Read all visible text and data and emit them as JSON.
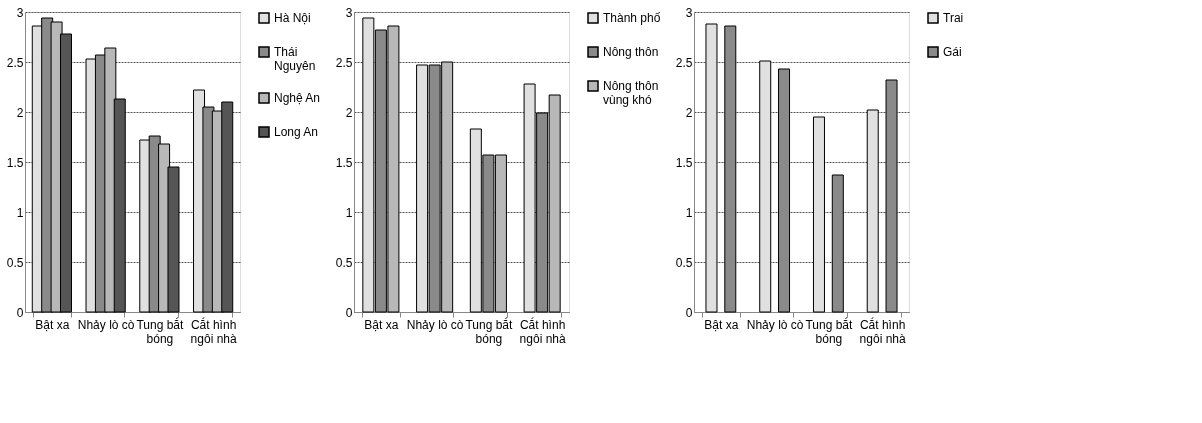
{
  "chart_data": [
    {
      "type": "bar",
      "categories": [
        "Bật xa",
        "Nhảy lò cò",
        "Tung bắt bóng",
        "Cắt hình ngôi nhà"
      ],
      "ylim": [
        0,
        3
      ],
      "yticks": [
        0,
        0.5,
        1,
        1.5,
        2,
        2.5,
        3
      ],
      "grid": "y",
      "legend": "right",
      "series": [
        {
          "name": "Hà Nội",
          "color": "#e0e0e0",
          "values": [
            2.86,
            2.53,
            1.72,
            2.22
          ]
        },
        {
          "name": "Thái Nguyên",
          "color": "#8a8a8a",
          "values": [
            2.94,
            2.57,
            1.76,
            2.05
          ]
        },
        {
          "name": "Nghệ An",
          "color": "#b8b8b8",
          "values": [
            2.9,
            2.64,
            1.68,
            2.01
          ]
        },
        {
          "name": "Long An",
          "color": "#555555",
          "values": [
            2.78,
            2.13,
            1.45,
            2.1
          ]
        }
      ]
    },
    {
      "type": "bar",
      "categories": [
        "Bật xa",
        "Nhảy lò cò",
        "Tung bắt bóng",
        "Cắt hình ngôi nhà"
      ],
      "ylim": [
        0,
        3
      ],
      "yticks": [
        0,
        0.5,
        1,
        1.5,
        2,
        2.5,
        3
      ],
      "grid": "y",
      "legend": "right",
      "series": [
        {
          "name": "Thành phố",
          "color": "#e0e0e0",
          "values": [
            2.94,
            2.47,
            1.83,
            2.28
          ]
        },
        {
          "name": "Nông thôn",
          "color": "#8a8a8a",
          "values": [
            2.82,
            2.47,
            1.57,
            1.99
          ]
        },
        {
          "name": "Nông thôn vùng khó",
          "color": "#b8b8b8",
          "values": [
            2.86,
            2.5,
            1.57,
            2.17
          ]
        }
      ]
    },
    {
      "type": "bar",
      "categories": [
        "Bật xa",
        "Nhảy lò cò",
        "Tung bắt bóng",
        "Cắt hình ngôi nhà"
      ],
      "ylim": [
        0,
        3
      ],
      "yticks": [
        0,
        0.5,
        1,
        1.5,
        2,
        2.5,
        3
      ],
      "grid": "y",
      "legend": "right",
      "series": [
        {
          "name": "Trai",
          "color": "#e0e0e0",
          "values": [
            2.88,
            2.51,
            1.95,
            2.02
          ]
        },
        {
          "name": "Gái",
          "color": "#8a8a8a",
          "values": [
            2.86,
            2.43,
            1.37,
            2.32
          ]
        }
      ]
    }
  ]
}
